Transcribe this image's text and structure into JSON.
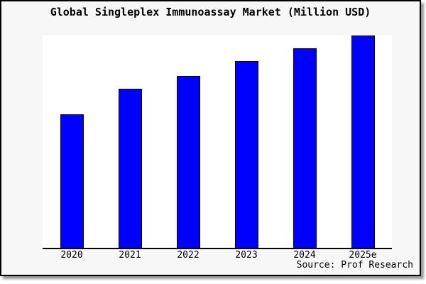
{
  "chart": {
    "title": "Global Singleplex Immunoassay Market (Million USD)",
    "source": "Source: Prof Research"
  },
  "colors": {
    "bar_fill": "#0000ff",
    "bar_border": "#000000",
    "figure_bg": "#f7f7f7",
    "plot_bg": "#ffffff",
    "axis": "#000000",
    "outer_border": "#000000"
  },
  "chart_data": {
    "type": "bar",
    "title": "Global Singleplex Immunoassay Market (Million USD)",
    "categories": [
      "2020",
      "2021",
      "2022",
      "2023",
      "2024",
      "2025e"
    ],
    "values": [
      63,
      75,
      81,
      88,
      94,
      100
    ],
    "values_note": "No y-axis ticks or scale are shown in the image; values are relative bar heights normalized so the tallest bar (2025e) = 100",
    "xlabel": "",
    "ylabel": "",
    "ylim": [
      0,
      100
    ],
    "grid": false,
    "legend": false,
    "source": "Source: Prof Research"
  }
}
